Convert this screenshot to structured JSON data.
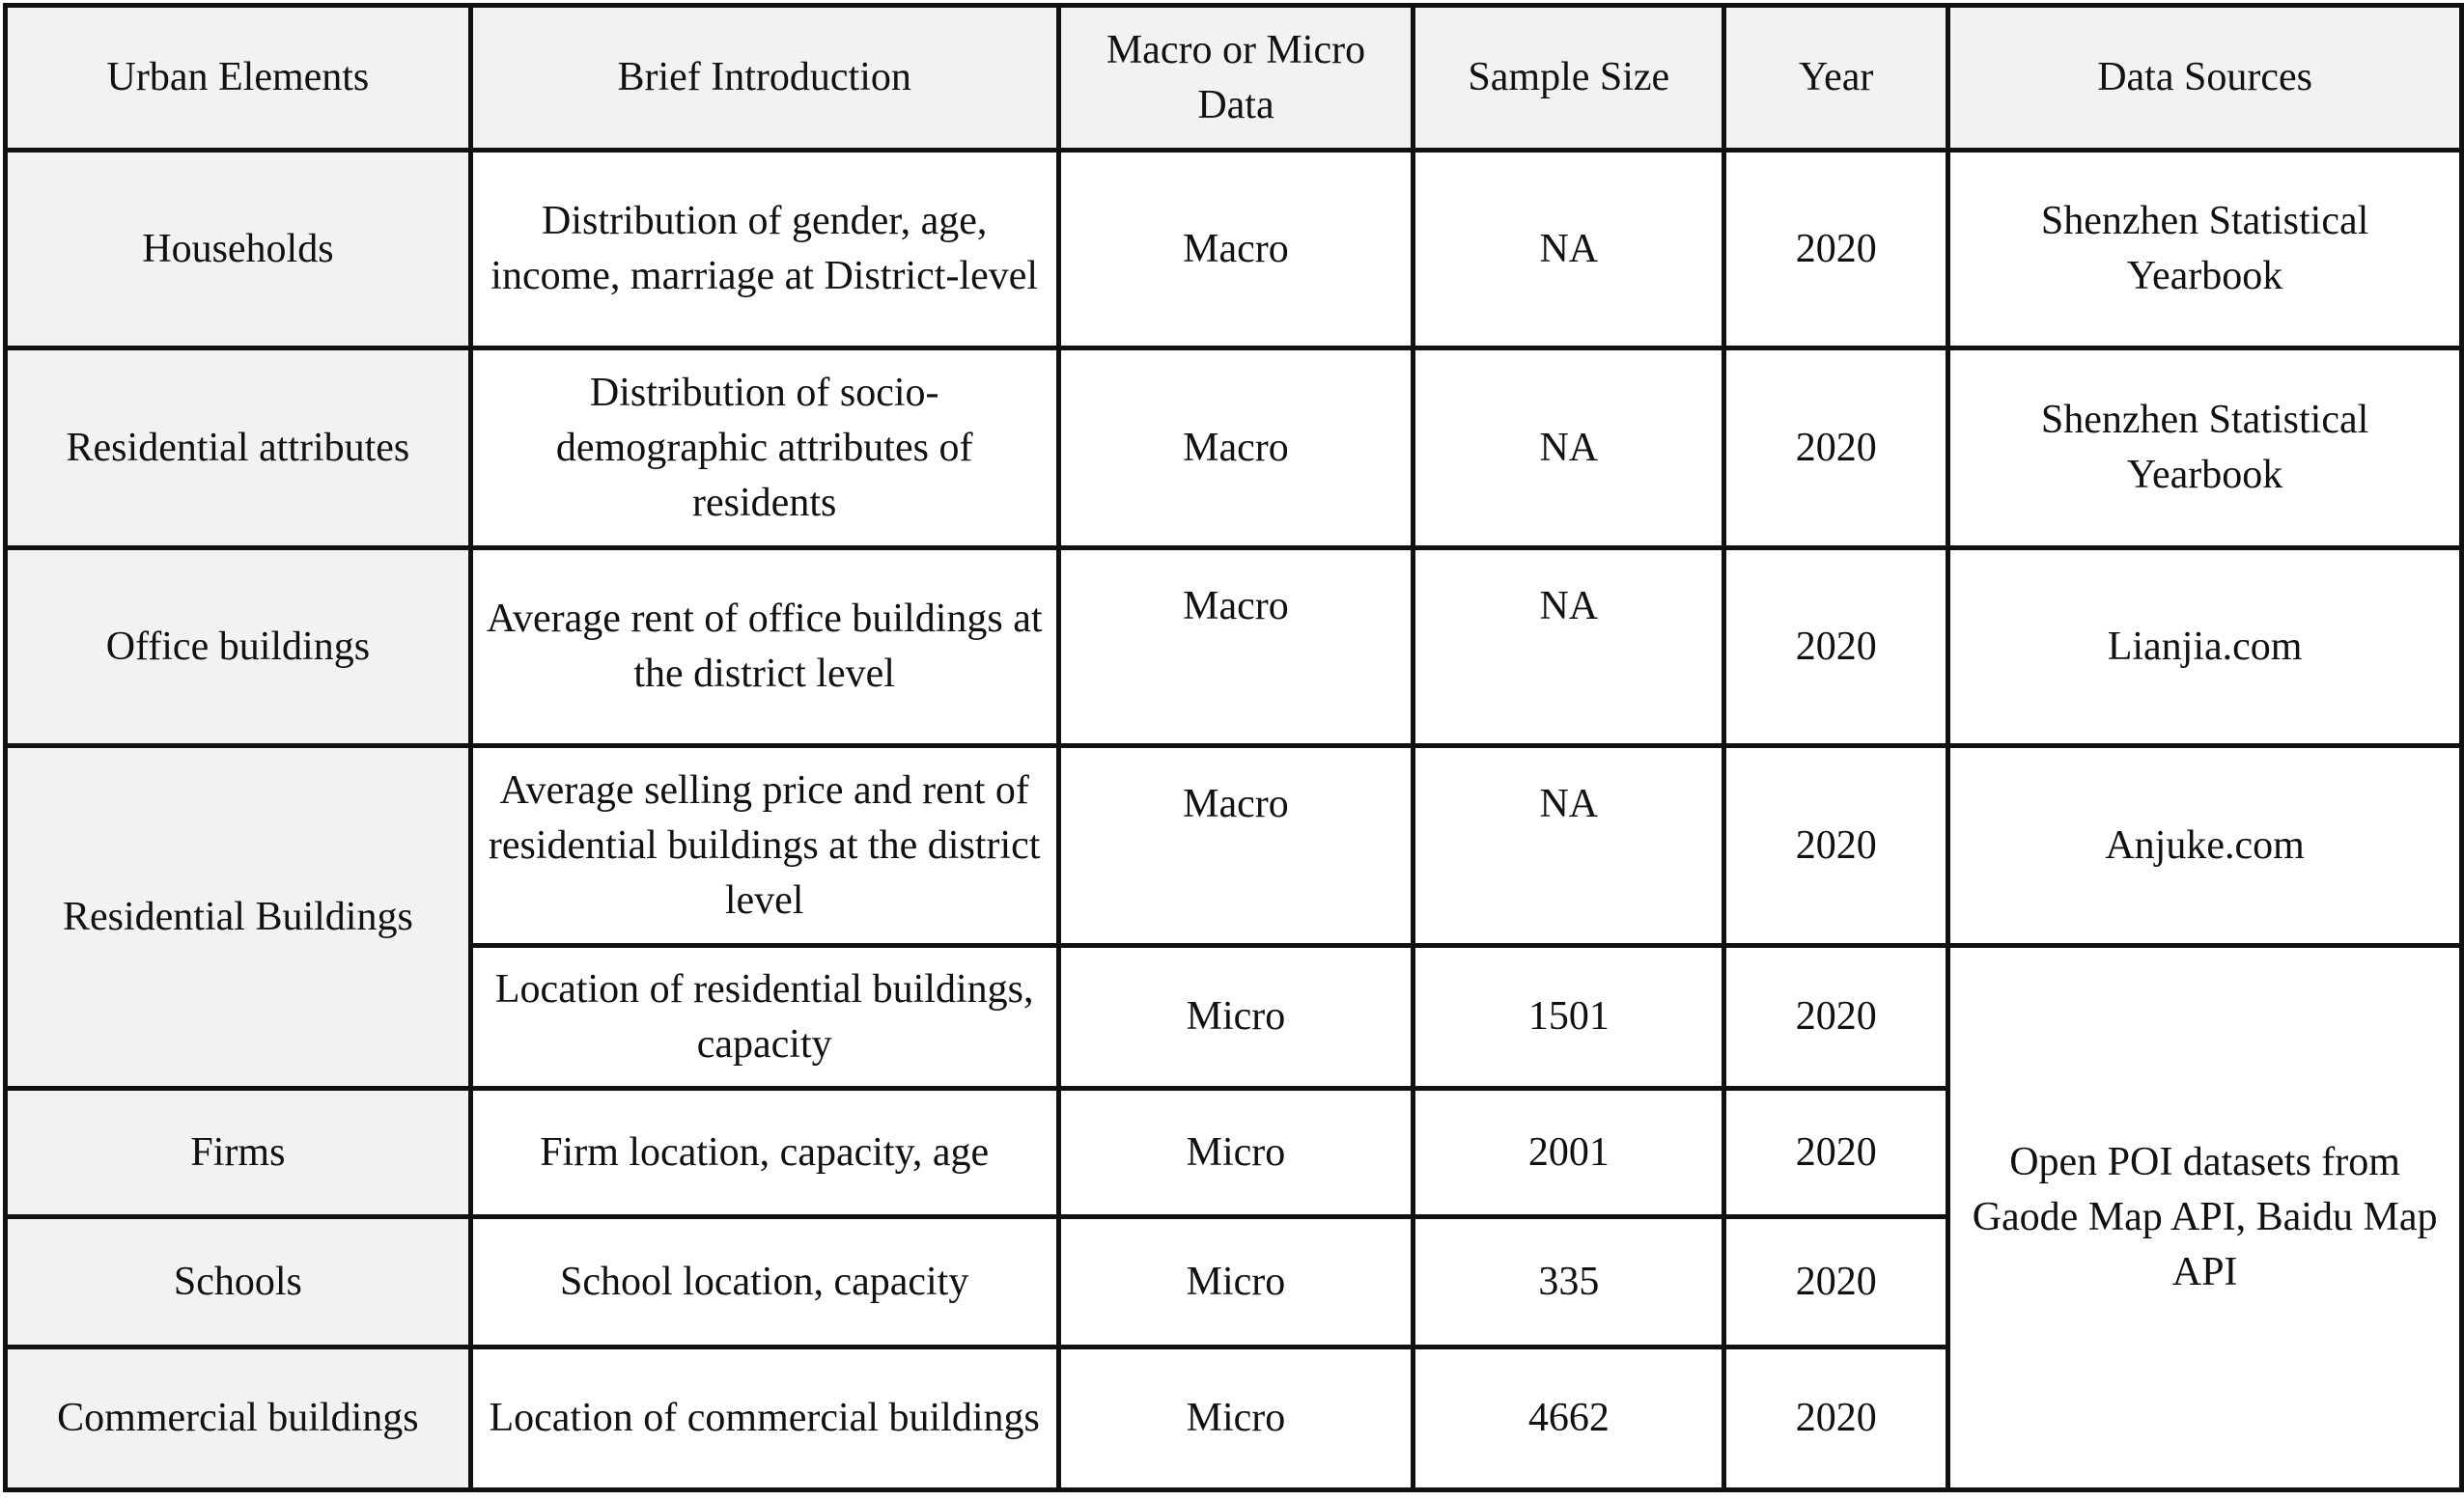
{
  "table": {
    "headers": [
      "Urban Elements",
      "Brief Introduction",
      "Macro or Micro Data",
      "Sample Size",
      "Year",
      "Data Sources"
    ],
    "rows": [
      {
        "element": "Households",
        "intro": "Distribution of gender, age, income, marriage at District-level",
        "scale": "Macro",
        "sample": "NA",
        "year": "2020",
        "source": "Shenzhen Statistical Yearbook"
      },
      {
        "element": "Residential attributes",
        "intro": "Distribution of socio-demographic attributes of residents",
        "scale": "Macro",
        "sample": "NA",
        "year": "2020",
        "source": "Shenzhen Statistical Yearbook"
      },
      {
        "element": "Office buildings",
        "intro": "Average rent of office buildings at the district level",
        "scale": "Macro",
        "sample": "NA",
        "year": "2020",
        "source": "Lianjia.com"
      },
      {
        "element": "Residential Buildings",
        "intro": "Average selling price and rent of residential buildings at the district level",
        "scale": "Macro",
        "sample": "NA",
        "year": "2020",
        "source": "Anjuke.com"
      },
      {
        "intro": "Location of residential buildings, capacity",
        "scale": "Micro",
        "sample": "1501",
        "year": "2020",
        "source": "Open POI datasets from Gaode Map API, Baidu Map API"
      },
      {
        "element": "Firms",
        "intro": "Firm location, capacity, age",
        "scale": "Micro",
        "sample": "2001",
        "year": "2020"
      },
      {
        "element": "Schools",
        "intro": "School location, capacity",
        "scale": "Micro",
        "sample": "335",
        "year": "2020"
      },
      {
        "element": "Commercial buildings",
        "intro": "Location of commercial buildings",
        "scale": "Micro",
        "sample": "4662",
        "year": "2020"
      }
    ]
  }
}
